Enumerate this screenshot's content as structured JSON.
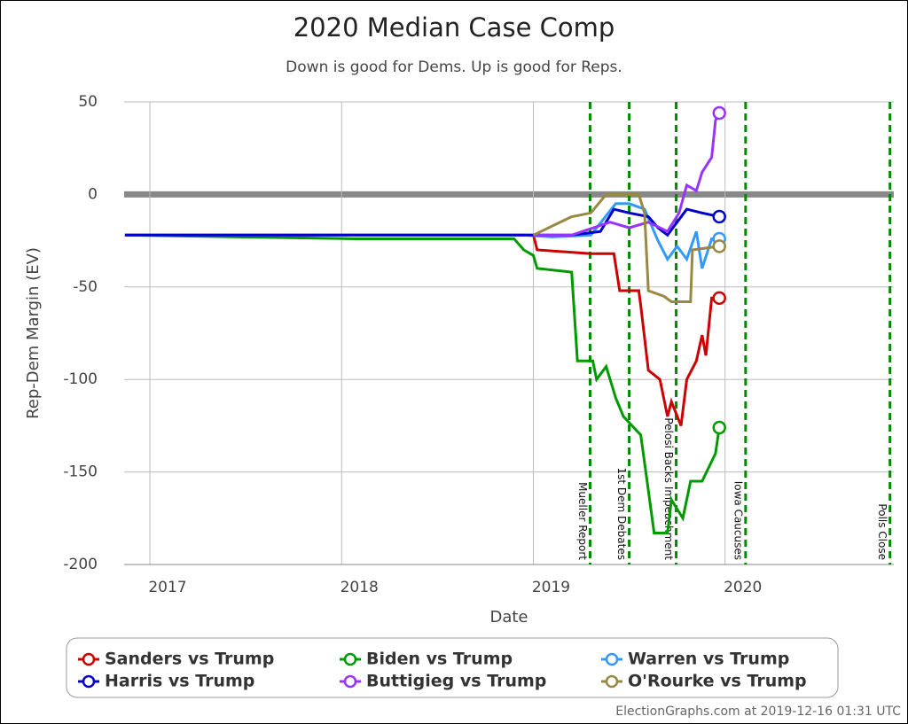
{
  "chart_data": {
    "type": "line",
    "title": "2020 Median Case Comp",
    "subtitle": "Down is good for Dems. Up is good for Reps.",
    "xlabel": "Date",
    "ylabel": "Rep-Dem Margin (EV)",
    "footer": "ElectionGraphs.com at 2019-12-16 01:31 UTC",
    "xlim": [
      2016.866,
      2020.88
    ],
    "xticks": [
      2017,
      2018,
      2019,
      2020
    ],
    "ylim": [
      -200,
      50
    ],
    "yticks": [
      -200,
      -150,
      -100,
      -50,
      0,
      50
    ],
    "grid": true,
    "legend": "bottom",
    "events": [
      {
        "x": 2019.296,
        "label": "Mueller Report"
      },
      {
        "x": 2019.5,
        "label": "1st Dem Debates"
      },
      {
        "x": 2019.745,
        "label": "Pelosi Backs Impeachment"
      },
      {
        "x": 2020.107,
        "label": "Iowa Caucuses"
      },
      {
        "x": 2020.86,
        "label": "Polls Close"
      }
    ],
    "series": [
      {
        "name": "Sanders vs Trump",
        "color": "#cc0000",
        "x": [
          2016.87,
          2019.0,
          2019.02,
          2019.3,
          2019.42,
          2019.45,
          2019.55,
          2019.56,
          2019.6,
          2019.66,
          2019.7,
          2019.72,
          2019.77,
          2019.8,
          2019.85,
          2019.88,
          2019.9,
          2019.93,
          2019.97
        ],
        "values": [
          -22,
          -22,
          -30,
          -32,
          -32,
          -52,
          -52,
          -60,
          -95,
          -100,
          -120,
          -112,
          -125,
          -100,
          -90,
          -76,
          -87,
          -56,
          -56
        ]
      },
      {
        "name": "Biden vs Trump",
        "color": "#009900",
        "x": [
          2016.87,
          2018.08,
          2018.9,
          2018.95,
          2019.0,
          2019.02,
          2019.2,
          2019.23,
          2019.31,
          2019.33,
          2019.38,
          2019.43,
          2019.47,
          2019.56,
          2019.6,
          2019.63,
          2019.7,
          2019.72,
          2019.78,
          2019.82,
          2019.88,
          2019.95,
          2019.97
        ],
        "values": [
          -22,
          -24,
          -24,
          -30,
          -33,
          -40,
          -42,
          -90,
          -90,
          -100,
          -93,
          -110,
          -120,
          -130,
          -160,
          -183,
          -183,
          -165,
          -175,
          -155,
          -155,
          -140,
          -126
        ]
      },
      {
        "name": "Warren vs Trump",
        "color": "#3399ff",
        "x": [
          2016.87,
          2018.95,
          2019.1,
          2019.3,
          2019.43,
          2019.5,
          2019.58,
          2019.65,
          2019.7,
          2019.75,
          2019.8,
          2019.85,
          2019.88,
          2019.93,
          2019.97
        ],
        "values": [
          -22,
          -22,
          -23,
          -22,
          -5,
          -5,
          -8,
          -25,
          -35,
          -28,
          -35,
          -20,
          -40,
          -24,
          -24
        ]
      },
      {
        "name": "Harris vs Trump",
        "color": "#0000cc",
        "x": [
          2016.87,
          2019.2,
          2019.35,
          2019.42,
          2019.5,
          2019.6,
          2019.65,
          2019.7,
          2019.75,
          2019.8,
          2019.88,
          2019.97
        ],
        "values": [
          -22,
          -22,
          -20,
          -8,
          -10,
          -12,
          -18,
          -22,
          -15,
          -8,
          -10,
          -12
        ]
      },
      {
        "name": "Buttigieg vs Trump",
        "color": "#9933ff",
        "x": [
          2019.0,
          2019.2,
          2019.4,
          2019.5,
          2019.6,
          2019.7,
          2019.76,
          2019.8,
          2019.85,
          2019.88,
          2019.93,
          2019.95,
          2019.97
        ],
        "values": [
          -22,
          -22,
          -15,
          -18,
          -15,
          -20,
          -10,
          5,
          2,
          12,
          20,
          40,
          44
        ]
      },
      {
        "name": "O'Rourke vs Trump",
        "color": "#998844",
        "x": [
          2019.0,
          2019.2,
          2019.3,
          2019.38,
          2019.55,
          2019.58,
          2019.6,
          2019.68,
          2019.72,
          2019.82,
          2019.83,
          2019.97
        ],
        "values": [
          -22,
          -12,
          -10,
          0,
          0,
          -10,
          -52,
          -55,
          -58,
          -58,
          -30,
          -28
        ]
      }
    ]
  }
}
